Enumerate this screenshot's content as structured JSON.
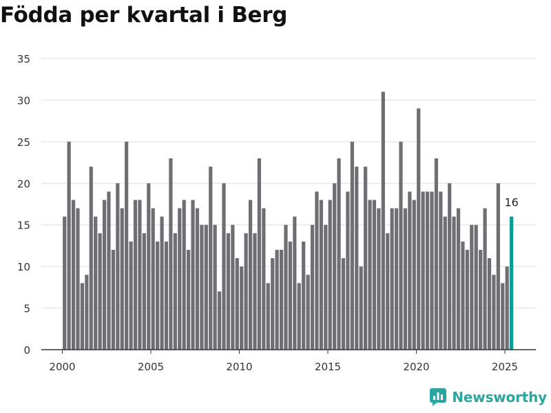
{
  "title": "Födda per kvartal i Berg",
  "brand": {
    "name": "Newsworthy",
    "icon": "newsworthy-logo-icon",
    "color": "#2aa5a0"
  },
  "colors": {
    "bar": "#6f6f73",
    "highlight": "#0c9b95",
    "grid": "#dddddd",
    "axis": "#333333",
    "text": "#333333"
  },
  "chart_data": {
    "type": "bar",
    "title": "Födda per kvartal i Berg",
    "xlabel": "",
    "ylabel": "",
    "ylim": [
      0,
      35
    ],
    "yticks": [
      0,
      5,
      10,
      15,
      20,
      25,
      30,
      35
    ],
    "xticks": [
      "2000",
      "2005",
      "2010",
      "2015",
      "2020",
      "2025"
    ],
    "first_period": "2000 Q1",
    "frequency": "quarterly",
    "grid": true,
    "values": [
      16,
      25,
      18,
      17,
      8,
      9,
      22,
      16,
      14,
      18,
      19,
      12,
      20,
      17,
      25,
      13,
      18,
      18,
      14,
      20,
      17,
      13,
      16,
      13,
      23,
      14,
      17,
      18,
      12,
      18,
      17,
      15,
      15,
      22,
      15,
      7,
      20,
      14,
      15,
      11,
      10,
      14,
      18,
      14,
      23,
      17,
      8,
      11,
      12,
      12,
      15,
      13,
      16,
      8,
      13,
      9,
      15,
      19,
      18,
      15,
      18,
      20,
      23,
      11,
      19,
      25,
      22,
      10,
      22,
      18,
      18,
      17,
      31,
      14,
      17,
      17,
      25,
      17,
      19,
      18,
      29,
      19,
      19,
      19,
      23,
      19,
      16,
      20,
      16,
      17,
      13,
      12,
      15,
      15,
      12,
      17,
      11,
      9,
      20,
      8,
      10,
      16
    ],
    "highlight": {
      "period": "2025 Q2",
      "value": 16,
      "label": "16"
    }
  }
}
